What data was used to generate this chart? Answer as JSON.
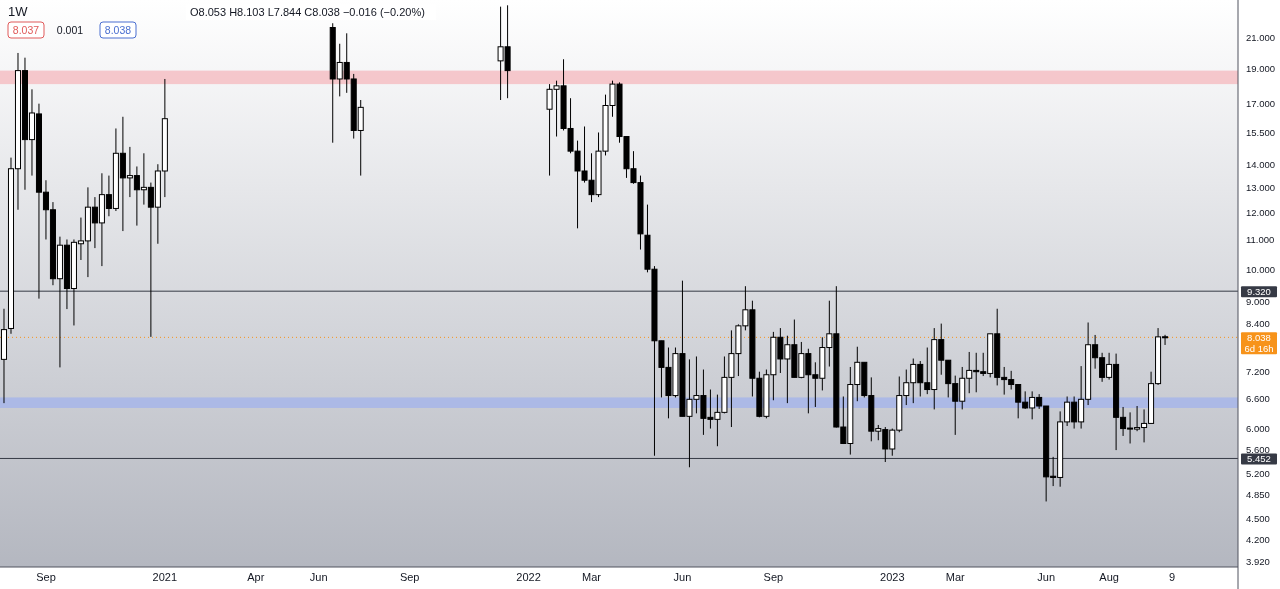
{
  "chart_data": {
    "type": "candlestick",
    "title": "1W",
    "annotations": [
      "O8.053 H8.103 L7.844 C8.038 −0.016 (−0.20%)",
      "8.037",
      "0.001",
      "8.038"
    ],
    "log": true,
    "xlim": [
      "2020-07-23",
      "2023-12-14"
    ],
    "ylim": [
      3.85,
      23.7
    ],
    "xticks": [
      {
        "value": "2020-09-07",
        "label": "Sep"
      },
      {
        "value": "2021-01-04",
        "label": "2021"
      },
      {
        "value": "2021-04-05",
        "label": "Apr"
      },
      {
        "value": "2021-06-07",
        "label": "Jun"
      },
      {
        "value": "2021-09-06",
        "label": "Sep"
      },
      {
        "value": "2022-01-03",
        "label": "2022"
      },
      {
        "value": "2022-03-07",
        "label": "Mar"
      },
      {
        "value": "2022-06-06",
        "label": "Jun"
      },
      {
        "value": "2022-09-05",
        "label": "Sep"
      },
      {
        "value": "2023-01-02",
        "label": "2023"
      },
      {
        "value": "2023-03-06",
        "label": "Mar"
      },
      {
        "value": "2023-06-05",
        "label": "Jun"
      },
      {
        "value": "2023-08-07",
        "label": "Aug"
      },
      {
        "value": "2023-10-09",
        "label": "9"
      }
    ],
    "yticks": [
      {
        "value": 21,
        "label": "21.000"
      },
      {
        "value": 19,
        "label": "19.000"
      },
      {
        "value": 17,
        "label": "17.000"
      },
      {
        "value": 15.5,
        "label": "15.500"
      },
      {
        "value": 14,
        "label": "14.000"
      },
      {
        "value": 13,
        "label": "13.000"
      },
      {
        "value": 12,
        "label": "12.000"
      },
      {
        "value": 11,
        "label": "11.000"
      },
      {
        "value": 10,
        "label": "10.000"
      },
      {
        "value": 9,
        "label": "9.000"
      },
      {
        "value": 8.4,
        "label": "8.400"
      },
      {
        "value": 7.2,
        "label": "7.200"
      },
      {
        "value": 6.6,
        "label": "6.600"
      },
      {
        "value": 6,
        "label": "6.000"
      },
      {
        "value": 5.6,
        "label": "5.600"
      },
      {
        "value": 5.2,
        "label": "5.200"
      },
      {
        "value": 4.85,
        "label": "4.850"
      },
      {
        "value": 4.5,
        "label": "4.500"
      },
      {
        "value": 4.2,
        "label": "4.200"
      },
      {
        "value": 3.92,
        "label": "3.920"
      }
    ],
    "ref_lines": [
      {
        "axis": "y",
        "value": 9.32,
        "label": "9.320",
        "color": "#363a45",
        "line_style": "solid"
      },
      {
        "axis": "y",
        "value": 5.452,
        "label": "5.452",
        "color": "#363a45",
        "line_style": "solid"
      },
      {
        "axis": "y",
        "value": 8.038,
        "label": "8.038\n6d 16h",
        "color": "#f7931a",
        "line_style": "dotted"
      }
    ],
    "bands": [
      {
        "axis": "y",
        "from": 18.1,
        "to": 18.9,
        "color": "#f5c2c7"
      },
      {
        "axis": "y",
        "from": 6.41,
        "to": 6.63,
        "color": "#a9b7e8"
      }
    ],
    "x": [
      "2020-07-27",
      "2020-08-03",
      "2020-08-10",
      "2020-08-17",
      "2020-08-24",
      "2020-08-31",
      "2020-09-07",
      "2020-09-14",
      "2020-09-21",
      "2020-09-28",
      "2020-10-05",
      "2020-10-12",
      "2020-10-19",
      "2020-10-26",
      "2020-11-02",
      "2020-11-09",
      "2020-11-16",
      "2020-11-23",
      "2020-11-30",
      "2020-12-07",
      "2020-12-14",
      "2020-12-21",
      "2020-12-28",
      "2021-01-04",
      "2021-06-21",
      "2021-06-28",
      "2021-07-05",
      "2021-07-12",
      "2021-07-19",
      "2021-12-06",
      "2021-12-13",
      "2022-01-24",
      "2022-01-31",
      "2022-02-07",
      "2022-02-14",
      "2022-02-21",
      "2022-02-28",
      "2022-03-07",
      "2022-03-14",
      "2022-03-21",
      "2022-03-28",
      "2022-04-04",
      "2022-04-11",
      "2022-04-18",
      "2022-04-25",
      "2022-05-02",
      "2022-05-09",
      "2022-05-16",
      "2022-05-23",
      "2022-05-30",
      "2022-06-06",
      "2022-06-13",
      "2022-06-20",
      "2022-06-27",
      "2022-07-04",
      "2022-07-11",
      "2022-07-18",
      "2022-07-25",
      "2022-08-01",
      "2022-08-08",
      "2022-08-15",
      "2022-08-22",
      "2022-08-29",
      "2022-09-05",
      "2022-09-12",
      "2022-09-19",
      "2022-09-26",
      "2022-10-03",
      "2022-10-10",
      "2022-10-17",
      "2022-10-24",
      "2022-10-31",
      "2022-11-07",
      "2022-11-14",
      "2022-11-21",
      "2022-11-28",
      "2022-12-05",
      "2022-12-12",
      "2022-12-19",
      "2022-12-26",
      "2023-01-02",
      "2023-01-09",
      "2023-01-16",
      "2023-01-23",
      "2023-01-30",
      "2023-02-06",
      "2023-02-13",
      "2023-02-20",
      "2023-02-27",
      "2023-03-06",
      "2023-03-13",
      "2023-03-20",
      "2023-03-27",
      "2023-04-03",
      "2023-04-10",
      "2023-04-17",
      "2023-04-24",
      "2023-05-01",
      "2023-05-08",
      "2023-05-15",
      "2023-05-22",
      "2023-05-29",
      "2023-06-05",
      "2023-06-12",
      "2023-06-19",
      "2023-06-26",
      "2023-07-03",
      "2023-07-10",
      "2023-07-17",
      "2023-07-24",
      "2023-07-31",
      "2023-08-07",
      "2023-08-14",
      "2023-08-21",
      "2023-08-28",
      "2023-09-04",
      "2023-09-11",
      "2023-09-18",
      "2023-09-25",
      "2023-10-02"
    ],
    "ohlc": [
      [
        7.49,
        8.81,
        6.51,
        8.24
      ],
      [
        8.27,
        14.3,
        8.13,
        13.8
      ],
      [
        13.8,
        20.0,
        12.1,
        18.9
      ],
      [
        18.9,
        19.7,
        12.9,
        15.15
      ],
      [
        15.15,
        17.8,
        13.5,
        16.5
      ],
      [
        16.45,
        17.0,
        9.1,
        12.8
      ],
      [
        12.8,
        13.3,
        11.0,
        12.1
      ],
      [
        12.1,
        12.4,
        9.5,
        9.7
      ],
      [
        9.7,
        11.1,
        7.3,
        10.8
      ],
      [
        10.8,
        11.0,
        8.8,
        9.4
      ],
      [
        9.4,
        11.0,
        8.35,
        10.9
      ],
      [
        10.85,
        11.8,
        10.3,
        10.95
      ],
      [
        10.95,
        13.0,
        9.75,
        12.2
      ],
      [
        12.2,
        12.6,
        10.7,
        11.6
      ],
      [
        11.6,
        13.6,
        10.1,
        12.7
      ],
      [
        12.7,
        13.5,
        11.85,
        12.15
      ],
      [
        12.15,
        15.7,
        12.05,
        14.5
      ],
      [
        14.5,
        16.3,
        11.3,
        13.4
      ],
      [
        13.4,
        14.8,
        12.6,
        13.5
      ],
      [
        13.5,
        13.9,
        11.5,
        12.9
      ],
      [
        12.9,
        14.5,
        12.3,
        13.0
      ],
      [
        13.0,
        13.2,
        8.05,
        12.2
      ],
      [
        12.2,
        14.0,
        10.85,
        13.7
      ],
      [
        13.7,
        18.4,
        12.6,
        16.2
      ],
      [
        21.7,
        22.0,
        15.0,
        18.4
      ],
      [
        18.4,
        20.6,
        17.4,
        19.4
      ],
      [
        19.4,
        21.3,
        17.6,
        18.4
      ],
      [
        18.4,
        18.7,
        15.2,
        15.6
      ],
      [
        15.6,
        17.2,
        13.5,
        16.8
      ],
      [
        19.5,
        23.2,
        17.2,
        20.4
      ],
      [
        20.4,
        23.3,
        17.3,
        18.9
      ],
      [
        16.7,
        18.1,
        13.5,
        17.8
      ],
      [
        17.8,
        18.3,
        15.3,
        18.0
      ],
      [
        18.0,
        19.6,
        15.6,
        15.7
      ],
      [
        15.7,
        17.3,
        14.5,
        14.6
      ],
      [
        14.6,
        15.1,
        11.4,
        13.7
      ],
      [
        13.7,
        15.8,
        13.2,
        13.3
      ],
      [
        13.3,
        14.5,
        12.4,
        12.7
      ],
      [
        12.7,
        15.5,
        12.6,
        14.6
      ],
      [
        14.6,
        17.5,
        14.4,
        16.9
      ],
      [
        16.9,
        18.3,
        16.3,
        18.1
      ],
      [
        18.1,
        18.2,
        15.0,
        15.3
      ],
      [
        15.3,
        15.3,
        13.4,
        13.8
      ],
      [
        13.8,
        14.6,
        13.15,
        13.2
      ],
      [
        13.2,
        13.5,
        10.65,
        11.2
      ],
      [
        11.15,
        12.3,
        9.9,
        10.0
      ],
      [
        10.0,
        10.1,
        5.5,
        7.95
      ],
      [
        7.95,
        7.95,
        6.63,
        7.3
      ],
      [
        7.3,
        7.78,
        6.2,
        6.67
      ],
      [
        6.67,
        7.78,
        6.63,
        7.63
      ],
      [
        7.63,
        9.64,
        6.24,
        6.24
      ],
      [
        6.24,
        7.49,
        5.3,
        6.59
      ],
      [
        6.59,
        7.56,
        6.3,
        6.67
      ],
      [
        6.67,
        7.25,
        5.88,
        6.2
      ],
      [
        6.22,
        6.8,
        6.0,
        6.18
      ],
      [
        6.18,
        6.69,
        5.67,
        6.32
      ],
      [
        6.32,
        7.56,
        6.3,
        7.07
      ],
      [
        7.07,
        8.22,
        6.03,
        7.63
      ],
      [
        7.63,
        8.38,
        7.1,
        8.34
      ],
      [
        8.34,
        9.47,
        8.22,
        8.78
      ],
      [
        8.78,
        9.04,
        6.65,
        7.05
      ],
      [
        7.05,
        7.2,
        6.22,
        6.24
      ],
      [
        6.24,
        7.25,
        6.2,
        7.13
      ],
      [
        7.13,
        8.18,
        6.57,
        8.04
      ],
      [
        8.04,
        8.28,
        7.17,
        7.5
      ],
      [
        7.5,
        8.08,
        6.51,
        7.85
      ],
      [
        7.85,
        8.51,
        7.07,
        7.07
      ],
      [
        7.07,
        7.92,
        7.05,
        7.63
      ],
      [
        7.63,
        7.75,
        6.3,
        7.13
      ],
      [
        7.13,
        7.42,
        6.43,
        7.05
      ],
      [
        7.05,
        8.04,
        6.78,
        7.78
      ],
      [
        7.78,
        9.04,
        7.32,
        8.13
      ],
      [
        8.13,
        9.47,
        6.02,
        6.03
      ],
      [
        6.03,
        6.65,
        5.71,
        5.72
      ],
      [
        5.72,
        7.31,
        5.52,
        6.91
      ],
      [
        6.91,
        7.8,
        6.55,
        7.42
      ],
      [
        7.42,
        7.42,
        6.63,
        6.67
      ],
      [
        6.67,
        7.07,
        5.76,
        5.95
      ],
      [
        5.95,
        6.07,
        5.78,
        6.0
      ],
      [
        5.98,
        6.03,
        5.39,
        5.62
      ],
      [
        5.62,
        6.0,
        5.5,
        5.97
      ],
      [
        5.97,
        7.09,
        5.93,
        6.67
      ],
      [
        6.67,
        7.25,
        6.47,
        6.95
      ],
      [
        6.95,
        7.51,
        6.51,
        7.37
      ],
      [
        7.37,
        7.45,
        6.65,
        6.95
      ],
      [
        6.95,
        7.78,
        6.7,
        6.8
      ],
      [
        6.8,
        8.28,
        6.38,
        7.98
      ],
      [
        7.98,
        8.4,
        7.13,
        7.47
      ],
      [
        7.47,
        7.47,
        6.63,
        6.93
      ],
      [
        6.93,
        7.11,
        5.88,
        6.55
      ],
      [
        6.55,
        7.31,
        6.38,
        7.05
      ],
      [
        7.05,
        7.67,
        6.72,
        7.23
      ],
      [
        7.23,
        7.65,
        6.74,
        7.2
      ],
      [
        7.2,
        7.65,
        7.1,
        7.16
      ],
      [
        7.16,
        8.13,
        7.07,
        8.13
      ],
      [
        8.13,
        8.81,
        6.89,
        7.07
      ],
      [
        7.07,
        7.31,
        6.69,
        7.02
      ],
      [
        7.02,
        7.22,
        6.8,
        6.91
      ],
      [
        6.91,
        6.91,
        6.2,
        6.53
      ],
      [
        6.53,
        6.76,
        6.39,
        6.41
      ],
      [
        6.41,
        6.76,
        6.18,
        6.63
      ],
      [
        6.63,
        6.7,
        6.39,
        6.45
      ],
      [
        6.45,
        6.45,
        4.75,
        5.14
      ],
      [
        5.15,
        5.48,
        4.99,
        5.13
      ],
      [
        5.13,
        6.34,
        4.98,
        6.13
      ],
      [
        6.13,
        6.65,
        6.05,
        6.53
      ],
      [
        6.53,
        6.65,
        6.0,
        6.13
      ],
      [
        6.13,
        7.33,
        6.0,
        6.59
      ],
      [
        6.59,
        8.43,
        6.47,
        7.85
      ],
      [
        7.85,
        8.1,
        7.27,
        7.53
      ],
      [
        7.53,
        7.65,
        6.97,
        7.07
      ],
      [
        7.07,
        7.65,
        7.02,
        7.37
      ],
      [
        7.37,
        7.63,
        5.6,
        6.22
      ],
      [
        6.22,
        6.43,
        5.86,
        6.0
      ],
      [
        6.01,
        6.32,
        5.72,
        5.99
      ],
      [
        5.99,
        6.45,
        5.95,
        6.02
      ],
      [
        6.02,
        6.38,
        5.74,
        6.1
      ],
      [
        6.1,
        7.2,
        6.1,
        6.93
      ],
      [
        6.93,
        8.28,
        6.9,
        8.05
      ],
      [
        8.053,
        8.103,
        7.844,
        8.038
      ]
    ]
  }
}
